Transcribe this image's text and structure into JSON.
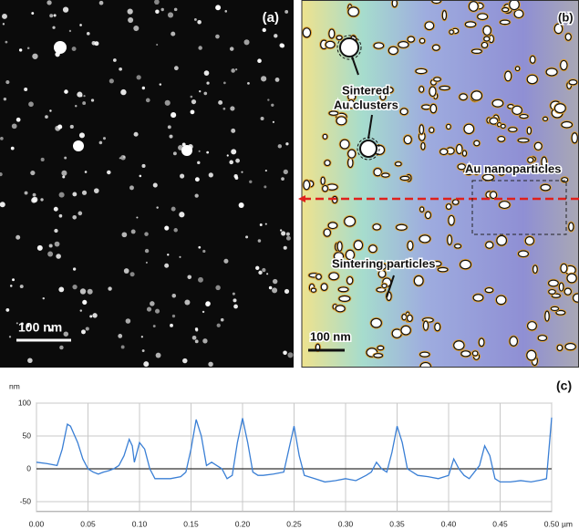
{
  "panels": {
    "a": {
      "label": "(a)",
      "scale_bar": "100 nm"
    },
    "b": {
      "label": "(b)",
      "annotations": [
        "Sintered",
        "Au clusters",
        "Au nanoparticles",
        "Sintering particles"
      ],
      "scale_bar": "100 nm"
    },
    "c": {
      "label": "(c)"
    }
  },
  "chart_data": {
    "type": "line",
    "y_unit": "nm",
    "x_unit": "µm",
    "color": "#3a7fd5",
    "x": [
      0.0,
      0.01,
      0.02,
      0.025,
      0.03,
      0.033,
      0.04,
      0.045,
      0.05,
      0.055,
      0.06,
      0.065,
      0.07,
      0.075,
      0.08,
      0.085,
      0.09,
      0.093,
      0.095,
      0.1,
      0.105,
      0.11,
      0.115,
      0.12,
      0.13,
      0.14,
      0.145,
      0.15,
      0.155,
      0.16,
      0.165,
      0.17,
      0.175,
      0.18,
      0.185,
      0.19,
      0.195,
      0.2,
      0.205,
      0.21,
      0.215,
      0.22,
      0.23,
      0.24,
      0.245,
      0.25,
      0.255,
      0.26,
      0.27,
      0.28,
      0.29,
      0.3,
      0.31,
      0.32,
      0.325,
      0.33,
      0.335,
      0.34,
      0.345,
      0.35,
      0.355,
      0.36,
      0.37,
      0.38,
      0.39,
      0.4,
      0.405,
      0.41,
      0.415,
      0.42,
      0.43,
      0.435,
      0.44,
      0.445,
      0.45,
      0.46,
      0.47,
      0.48,
      0.49,
      0.495,
      0.5
    ],
    "values": [
      10,
      8,
      5,
      30,
      68,
      65,
      40,
      15,
      0,
      -5,
      -8,
      -5,
      -3,
      0,
      5,
      20,
      45,
      35,
      10,
      40,
      30,
      0,
      -15,
      -15,
      -15,
      -12,
      -5,
      30,
      75,
      50,
      5,
      10,
      5,
      0,
      -15,
      -10,
      40,
      77,
      40,
      -5,
      -10,
      -10,
      -8,
      -5,
      30,
      65,
      20,
      -10,
      -15,
      -20,
      -18,
      -15,
      -18,
      -10,
      -5,
      10,
      0,
      -5,
      25,
      65,
      40,
      0,
      -10,
      -12,
      -15,
      -10,
      15,
      0,
      -10,
      -15,
      5,
      35,
      20,
      -15,
      -20,
      -20,
      -18,
      -20,
      -17,
      -15,
      78
    ],
    "xlim": [
      0,
      0.5
    ],
    "ylim": [
      -65,
      100
    ],
    "xticks": [
      {
        "value": 0,
        "label": "0.00"
      },
      {
        "value": 0.05,
        "label": "0.05"
      },
      {
        "value": 0.1,
        "label": "0.10"
      },
      {
        "value": 0.15,
        "label": "0.15"
      },
      {
        "value": 0.2,
        "label": "0.20"
      },
      {
        "value": 0.25,
        "label": "0.25"
      },
      {
        "value": 0.3,
        "label": "0.30"
      },
      {
        "value": 0.35,
        "label": "0.35"
      },
      {
        "value": 0.4,
        "label": "0.40"
      },
      {
        "value": 0.45,
        "label": "0.45"
      },
      {
        "value": 0.5,
        "label": "0.50"
      }
    ],
    "yticks": [
      100,
      50,
      0,
      -50
    ],
    "grid": true
  }
}
